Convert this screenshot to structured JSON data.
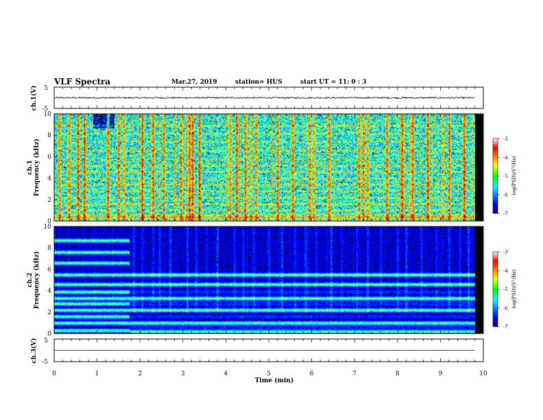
{
  "header": {
    "title": "VLF Spectra",
    "date": "Mar.27, 2019",
    "station": "station= HUS",
    "start": "start  UT  =   11: 0  : 3"
  },
  "colors": {
    "background": "#ffffff",
    "axis": "#000000",
    "spectrogram_bg": "#000000"
  },
  "chart_data": [
    {
      "type": "line",
      "name": "ch1-waveform",
      "ylabel": "ch.1(V)",
      "ylim": [
        -5,
        5
      ],
      "yticks": [
        "5",
        "-5"
      ],
      "xlim": [
        0,
        10
      ],
      "description": "noisy trace near 0 V from 0 to 9.8 min",
      "level": 0,
      "noise_amplitude": 0.35,
      "x_end": 9.8
    },
    {
      "type": "heatmap",
      "name": "ch1-spectrogram",
      "ylabel_top": "ch.1",
      "ylabel": "Frequency (kHz)",
      "ylim": [
        0,
        10
      ],
      "yticks": [
        "0",
        "2",
        "4",
        "6",
        "8",
        "10"
      ],
      "xlim": [
        0,
        10
      ],
      "x_end": 9.8,
      "base_level": 0.42,
      "bright_bands_khz": [
        0.4,
        1.0,
        1.6,
        2.2,
        2.8,
        3.4,
        4.0,
        4.6,
        5.2,
        5.8,
        6.6,
        7.4,
        8.2,
        8.9
      ],
      "burst_times_min": [
        0.12,
        0.35,
        0.55,
        0.7,
        1.25,
        1.5,
        1.62,
        2.05,
        2.3,
        2.55,
        2.95,
        3.08,
        3.15,
        3.22,
        3.38,
        4.1,
        4.25,
        4.45,
        4.58,
        4.7,
        5.2,
        5.55,
        5.95,
        6.05,
        6.4,
        7.1,
        7.2,
        7.3,
        7.75,
        8.1,
        8.3,
        8.35,
        8.7,
        9.05,
        9.2,
        9.55
      ],
      "colorbar": {
        "label": "log(PSD)(V²/Hz)",
        "ticks": [
          "-3",
          "-4",
          "-5",
          "-6",
          "-7"
        ],
        "range": [
          -7,
          -3
        ]
      }
    },
    {
      "type": "heatmap",
      "name": "ch2-spectrogram",
      "ylabel_top": "ch.2",
      "ylabel": "Frequency (kHz)",
      "ylim": [
        0,
        10
      ],
      "yticks": [
        "0",
        "2",
        "4",
        "6",
        "8",
        "10"
      ],
      "xlim": [
        0,
        10
      ],
      "x_end": 9.8,
      "base_level": 0.05,
      "strong_bands_khz": [
        0.2,
        1.0,
        2.2,
        3.3,
        4.6,
        5.5
      ],
      "early_bands_khz": [
        0.3,
        1.0,
        1.6,
        2.2,
        2.8,
        3.3,
        3.9,
        4.6,
        5.5,
        6.6,
        7.6,
        8.7
      ],
      "early_end_min": 1.75,
      "spike_times_min": [
        1.85,
        2.05,
        2.3,
        2.45,
        2.7,
        3.1,
        3.3,
        3.55,
        3.8,
        4.2,
        4.4,
        4.65,
        5.0,
        5.3,
        5.6,
        5.85,
        6.1,
        6.45,
        6.7,
        7.05,
        7.3,
        7.6,
        8.0,
        8.2,
        8.55,
        8.9,
        9.2,
        9.45,
        9.65
      ],
      "colorbar": {
        "label": "log(PSD)(V²/Hz)",
        "ticks": [
          "-3",
          "-4",
          "-5",
          "-6",
          "-7"
        ],
        "range": [
          -7,
          -3
        ]
      }
    },
    {
      "type": "line",
      "name": "ch3-waveform",
      "ylabel": "ch.3(V)",
      "ylim": [
        -5,
        5
      ],
      "yticks": [
        "5",
        "-5"
      ],
      "xlim": [
        0,
        10
      ],
      "level": 0,
      "x_end": 9.8,
      "xlabel": "Time  (min)",
      "xticks": [
        "0",
        "1",
        "2",
        "3",
        "4",
        "5",
        "6",
        "7",
        "8",
        "9",
        "10"
      ]
    }
  ]
}
